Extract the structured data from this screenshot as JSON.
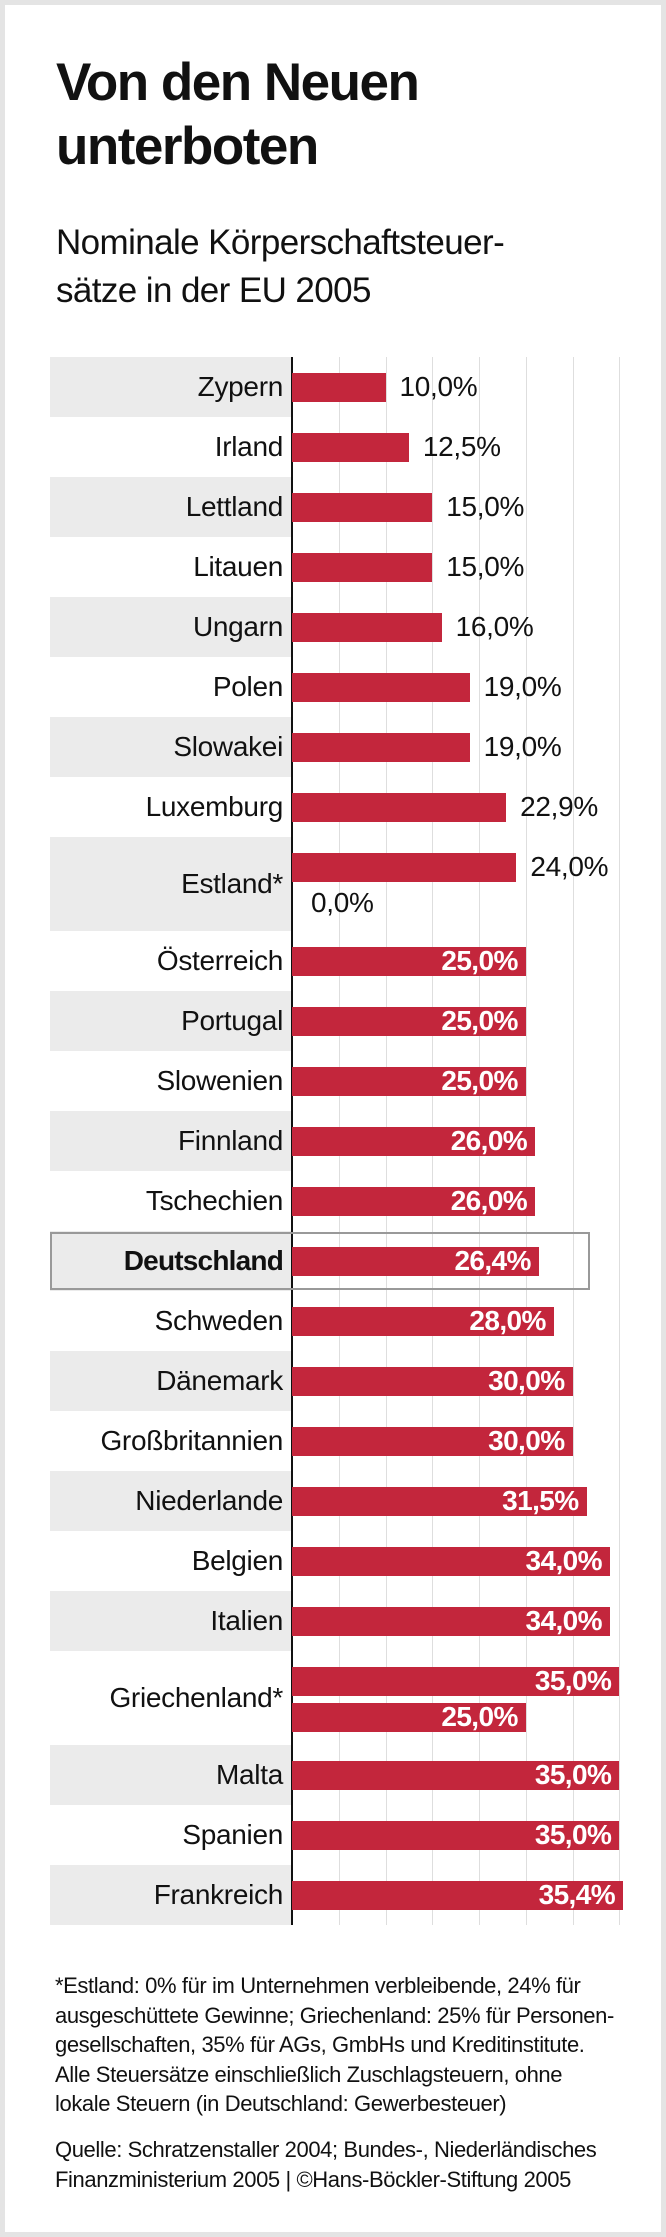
{
  "title": [
    "Von den Neuen",
    "unterboten"
  ],
  "subtitle": [
    "Nominale Körperschaftsteuer-",
    "sätze in der EU 2005"
  ],
  "colors": {
    "bar": "#c3263c",
    "band": "#ebebeb",
    "grid": "#dedede",
    "highlight_border": "#999999"
  },
  "chart_data": {
    "type": "bar",
    "orientation": "horizontal",
    "xlim": [
      0,
      35
    ],
    "grid": true,
    "gridline_step": 5,
    "unit": "%",
    "rows": [
      {
        "label": "Zypern",
        "values": [
          10.0
        ],
        "value_labels": [
          "10,0%"
        ]
      },
      {
        "label": "Irland",
        "values": [
          12.5
        ],
        "value_labels": [
          "12,5%"
        ]
      },
      {
        "label": "Lettland",
        "values": [
          15.0
        ],
        "value_labels": [
          "15,0%"
        ]
      },
      {
        "label": "Litauen",
        "values": [
          15.0
        ],
        "value_labels": [
          "15,0%"
        ]
      },
      {
        "label": "Ungarn",
        "values": [
          16.0
        ],
        "value_labels": [
          "16,0%"
        ]
      },
      {
        "label": "Polen",
        "values": [
          19.0
        ],
        "value_labels": [
          "19,0%"
        ]
      },
      {
        "label": "Slowakei",
        "values": [
          19.0
        ],
        "value_labels": [
          "19,0%"
        ]
      },
      {
        "label": "Luxemburg",
        "values": [
          22.9
        ],
        "value_labels": [
          "22,9%"
        ]
      },
      {
        "label": "Estland*",
        "values": [
          24.0,
          0.0
        ],
        "value_labels": [
          "24,0%",
          "0,0%"
        ]
      },
      {
        "label": "Österreich",
        "values": [
          25.0
        ],
        "value_labels": [
          "25,0%"
        ]
      },
      {
        "label": "Portugal",
        "values": [
          25.0
        ],
        "value_labels": [
          "25,0%"
        ]
      },
      {
        "label": "Slowenien",
        "values": [
          25.0
        ],
        "value_labels": [
          "25,0%"
        ]
      },
      {
        "label": "Finnland",
        "values": [
          26.0
        ],
        "value_labels": [
          "26,0%"
        ]
      },
      {
        "label": "Tschechien",
        "values": [
          26.0
        ],
        "value_labels": [
          "26,0%"
        ]
      },
      {
        "label": "Deutschland",
        "values": [
          26.4
        ],
        "value_labels": [
          "26,4%"
        ],
        "highlight": true
      },
      {
        "label": "Schweden",
        "values": [
          28.0
        ],
        "value_labels": [
          "28,0%"
        ]
      },
      {
        "label": "Dänemark",
        "values": [
          30.0
        ],
        "value_labels": [
          "30,0%"
        ]
      },
      {
        "label": "Großbritannien",
        "values": [
          30.0
        ],
        "value_labels": [
          "30,0%"
        ]
      },
      {
        "label": "Niederlande",
        "values": [
          31.5
        ],
        "value_labels": [
          "31,5%"
        ]
      },
      {
        "label": "Belgien",
        "values": [
          34.0
        ],
        "value_labels": [
          "34,0%"
        ]
      },
      {
        "label": "Italien",
        "values": [
          34.0
        ],
        "value_labels": [
          "34,0%"
        ]
      },
      {
        "label": "Griechenland*",
        "values": [
          35.0,
          25.0
        ],
        "value_labels": [
          "35,0%",
          "25,0%"
        ]
      },
      {
        "label": "Malta",
        "values": [
          35.0
        ],
        "value_labels": [
          "35,0%"
        ]
      },
      {
        "label": "Spanien",
        "values": [
          35.0
        ],
        "value_labels": [
          "35,0%"
        ]
      },
      {
        "label": "Frankreich",
        "values": [
          35.4
        ],
        "value_labels": [
          "35,4%"
        ]
      }
    ]
  },
  "notes": [
    "*Estland: 0% für im Unternehmen verbleibende, 24% für",
    "ausgeschüttete Gewinne; Griechenland: 25% für Personen-",
    "gesellschaften, 35% für AGs, GmbHs und Kreditinstitute.",
    "Alle Steuersätze einschließlich Zuschlagsteuern, ohne",
    "lokale Steuern (in Deutschland: Gewerbesteuer)"
  ],
  "source": [
    "Quelle: Schratzenstaller 2004; Bundes-, Niederländisches",
    "Finanzministerium 2005 | ©Hans-Böckler-Stiftung 2005"
  ]
}
